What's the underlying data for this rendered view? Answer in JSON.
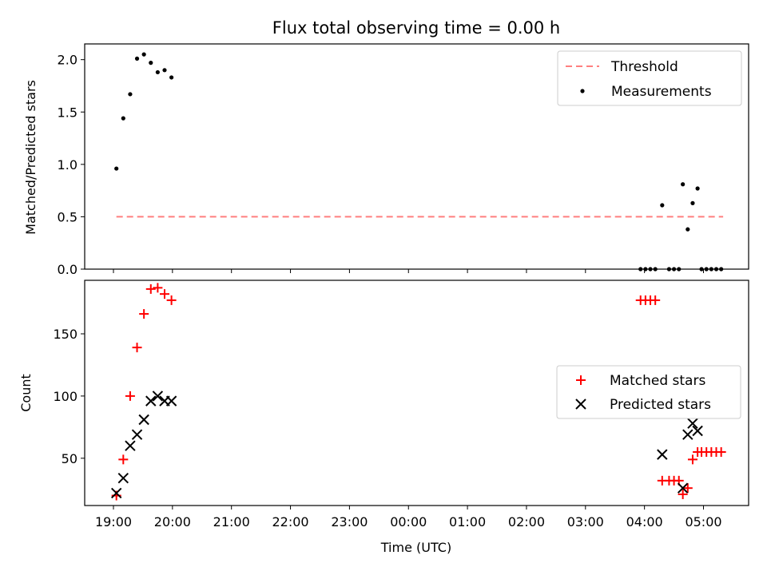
{
  "chart_data": [
    {
      "type": "scatter",
      "title": "Flux total observing time = 0.00 h",
      "ylabel": "Matched/Predicted stars",
      "xlabel": "",
      "x_axis": "time (UTC), shared with lower panel",
      "ylim": [
        0,
        2.15
      ],
      "yticks": [
        "0.0",
        "0.5",
        "1.0",
        "1.5",
        "2.0"
      ],
      "ytick_values": [
        0.0,
        0.5,
        1.0,
        1.5,
        2.0
      ],
      "legend_position": "upper right",
      "threshold": {
        "name": "Threshold",
        "value": 0.5,
        "x_start": "19:03",
        "x_end": "05:20",
        "color": "#ff7f7f",
        "style": "dashed"
      },
      "series": [
        {
          "name": "Measurements",
          "marker": "dot",
          "color": "#000000",
          "x": [
            "19:03",
            "19:10",
            "19:17",
            "19:24",
            "19:31",
            "19:38",
            "19:45",
            "19:52",
            "19:59",
            "03:56",
            "04:01",
            "04:06",
            "04:11",
            "04:18",
            "04:25",
            "04:30",
            "04:35",
            "04:39",
            "04:44",
            "04:49",
            "04:54",
            "04:58",
            "05:03",
            "05:08",
            "05:13",
            "05:18"
          ],
          "y": [
            0.96,
            1.44,
            1.67,
            2.01,
            2.05,
            1.97,
            1.88,
            1.9,
            1.83,
            0.0,
            0.0,
            0.0,
            0.0,
            0.61,
            0.0,
            0.0,
            0.0,
            0.81,
            0.38,
            0.63,
            0.77,
            0.0,
            0.0,
            0.0,
            0.0,
            0.0
          ]
        }
      ]
    },
    {
      "type": "scatter",
      "title": "",
      "ylabel": "Count",
      "xlabel": "Time (UTC)",
      "ylim": [
        12,
        193
      ],
      "yticks": [
        "50",
        "100",
        "150"
      ],
      "ytick_values": [
        50,
        100,
        150
      ],
      "xticks": [
        "19:00",
        "20:00",
        "21:00",
        "22:00",
        "23:00",
        "00:00",
        "01:00",
        "02:00",
        "03:00",
        "04:00",
        "05:00"
      ],
      "legend_position": "center right",
      "series": [
        {
          "name": "Matched stars",
          "marker": "plus",
          "color": "#ff0000",
          "x": [
            "19:03",
            "19:10",
            "19:17",
            "19:24",
            "19:31",
            "19:38",
            "19:45",
            "19:52",
            "19:59",
            "03:56",
            "04:01",
            "04:06",
            "04:11",
            "04:18",
            "04:25",
            "04:30",
            "04:35",
            "04:39",
            "04:44",
            "04:49",
            "04:54",
            "04:58",
            "05:03",
            "05:08",
            "05:13",
            "05:18"
          ],
          "y": [
            20,
            49,
            100,
            139,
            166,
            186,
            187,
            182,
            177,
            177,
            177,
            177,
            177,
            32,
            32,
            32,
            32,
            21,
            26,
            49,
            55,
            55,
            55,
            55,
            55,
            55
          ]
        },
        {
          "name": "Predicted stars",
          "marker": "x",
          "color": "#000000",
          "x": [
            "19:03",
            "19:10",
            "19:17",
            "19:24",
            "19:31",
            "19:38",
            "19:45",
            "19:52",
            "19:59",
            "04:18",
            "04:39",
            "04:44",
            "04:49",
            "04:54"
          ],
          "y": [
            22,
            34,
            60,
            69,
            81,
            96,
            100,
            96,
            96,
            53,
            26,
            69,
            78,
            72
          ]
        }
      ]
    }
  ]
}
